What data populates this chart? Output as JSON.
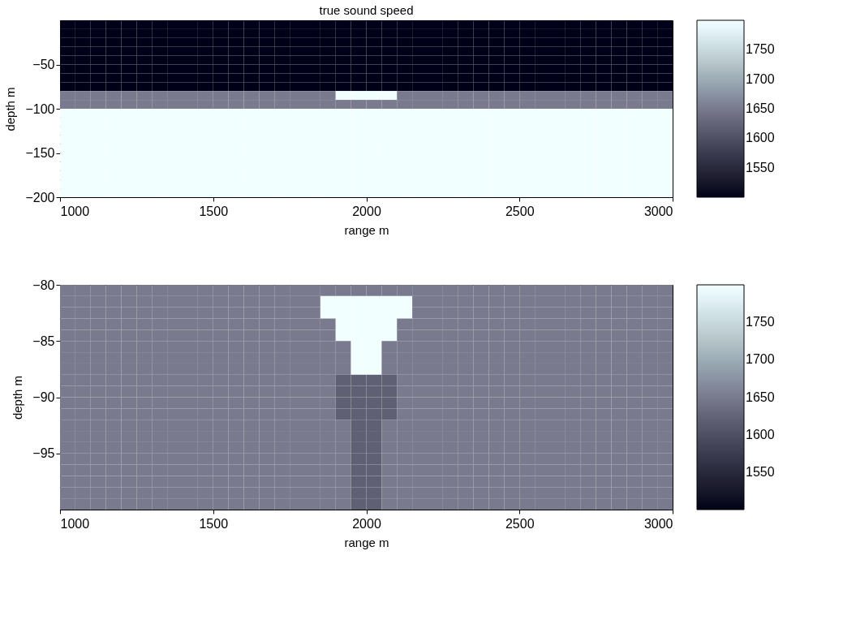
{
  "chart_data": [
    {
      "type": "heatmap",
      "title": "true sound speed",
      "xlabel": "range m",
      "ylabel": "depth m",
      "xlim": [
        1000,
        3000
      ],
      "xticks": [
        1000,
        1500,
        2000,
        2500,
        3000
      ],
      "ylim": [
        -200,
        0
      ],
      "yticks": [
        -200,
        -150,
        -100,
        -50
      ],
      "clim": [
        1500,
        1800
      ],
      "cticks": [
        1550,
        1600,
        1650,
        1700,
        1750
      ],
      "grid": false,
      "cells": [
        [
          1500,
          1500,
          1500,
          1500,
          1500,
          1500,
          1500,
          1500,
          1500,
          1500,
          1500,
          1500,
          1500,
          1500,
          1500,
          1500,
          1500,
          1500,
          1500,
          1500,
          1500,
          1500,
          1500,
          1500,
          1500,
          1500,
          1500,
          1500,
          1500,
          1500,
          1500,
          1500,
          1500,
          1500,
          1500,
          1500,
          1500,
          1500,
          1500,
          1500
        ],
        [
          1500,
          1500,
          1500,
          1500,
          1500,
          1500,
          1500,
          1500,
          1500,
          1500,
          1500,
          1500,
          1500,
          1500,
          1500,
          1500,
          1500,
          1500,
          1500,
          1500,
          1500,
          1500,
          1500,
          1500,
          1500,
          1500,
          1500,
          1500,
          1500,
          1500,
          1500,
          1500,
          1500,
          1500,
          1500,
          1500,
          1500,
          1500,
          1500,
          1500
        ],
        [
          1500,
          1500,
          1500,
          1500,
          1500,
          1500,
          1500,
          1500,
          1500,
          1500,
          1500,
          1500,
          1500,
          1500,
          1500,
          1500,
          1500,
          1500,
          1500,
          1500,
          1500,
          1500,
          1500,
          1500,
          1500,
          1500,
          1500,
          1500,
          1500,
          1500,
          1500,
          1500,
          1500,
          1500,
          1500,
          1500,
          1500,
          1500,
          1500,
          1500
        ],
        [
          1500,
          1500,
          1500,
          1500,
          1500,
          1500,
          1500,
          1500,
          1500,
          1500,
          1500,
          1500,
          1500,
          1500,
          1500,
          1500,
          1500,
          1500,
          1500,
          1500,
          1500,
          1500,
          1500,
          1500,
          1500,
          1500,
          1500,
          1500,
          1500,
          1500,
          1500,
          1500,
          1500,
          1500,
          1500,
          1500,
          1500,
          1500,
          1500,
          1500
        ],
        [
          1500,
          1500,
          1500,
          1500,
          1500,
          1500,
          1500,
          1500,
          1500,
          1500,
          1500,
          1500,
          1500,
          1500,
          1500,
          1500,
          1500,
          1500,
          1500,
          1500,
          1500,
          1500,
          1500,
          1500,
          1500,
          1500,
          1500,
          1500,
          1500,
          1500,
          1500,
          1500,
          1500,
          1500,
          1500,
          1500,
          1500,
          1500,
          1500,
          1500
        ],
        [
          1500,
          1500,
          1500,
          1500,
          1500,
          1500,
          1500,
          1500,
          1500,
          1500,
          1500,
          1500,
          1500,
          1500,
          1500,
          1500,
          1500,
          1500,
          1500,
          1500,
          1500,
          1500,
          1500,
          1500,
          1500,
          1500,
          1500,
          1500,
          1500,
          1500,
          1500,
          1500,
          1500,
          1500,
          1500,
          1500,
          1500,
          1500,
          1500,
          1500
        ],
        [
          1500,
          1500,
          1500,
          1500,
          1500,
          1500,
          1500,
          1500,
          1500,
          1500,
          1500,
          1500,
          1500,
          1500,
          1500,
          1500,
          1500,
          1500,
          1500,
          1500,
          1500,
          1500,
          1500,
          1500,
          1500,
          1500,
          1500,
          1500,
          1500,
          1500,
          1500,
          1500,
          1500,
          1500,
          1500,
          1500,
          1500,
          1500,
          1500,
          1500
        ],
        [
          1500,
          1500,
          1500,
          1500,
          1500,
          1500,
          1500,
          1500,
          1500,
          1500,
          1500,
          1500,
          1500,
          1500,
          1500,
          1500,
          1500,
          1500,
          1500,
          1500,
          1500,
          1500,
          1500,
          1500,
          1500,
          1500,
          1500,
          1500,
          1500,
          1500,
          1500,
          1500,
          1500,
          1500,
          1500,
          1500,
          1500,
          1500,
          1500,
          1500
        ],
        [
          1650,
          1650,
          1650,
          1650,
          1650,
          1650,
          1650,
          1650,
          1650,
          1650,
          1650,
          1650,
          1650,
          1650,
          1650,
          1650,
          1650,
          1650,
          1800,
          1800,
          1800,
          1800,
          1650,
          1650,
          1650,
          1650,
          1650,
          1650,
          1650,
          1650,
          1650,
          1650,
          1650,
          1650,
          1650,
          1650,
          1650,
          1650,
          1650,
          1650
        ],
        [
          1650,
          1650,
          1650,
          1650,
          1650,
          1650,
          1650,
          1650,
          1650,
          1650,
          1650,
          1650,
          1650,
          1650,
          1650,
          1650,
          1650,
          1650,
          1650,
          1650,
          1650,
          1650,
          1650,
          1650,
          1650,
          1650,
          1650,
          1650,
          1650,
          1650,
          1650,
          1650,
          1650,
          1650,
          1650,
          1650,
          1650,
          1650,
          1650,
          1650
        ],
        [
          1800,
          1800,
          1800,
          1800,
          1800,
          1800,
          1800,
          1800,
          1800,
          1800,
          1800,
          1800,
          1800,
          1800,
          1800,
          1800,
          1800,
          1800,
          1800,
          1800,
          1800,
          1800,
          1800,
          1800,
          1800,
          1800,
          1800,
          1800,
          1800,
          1800,
          1800,
          1800,
          1800,
          1800,
          1800,
          1800,
          1800,
          1800,
          1800,
          1800
        ],
        [
          1800,
          1800,
          1800,
          1800,
          1800,
          1800,
          1800,
          1800,
          1800,
          1800,
          1800,
          1800,
          1800,
          1800,
          1800,
          1800,
          1800,
          1800,
          1800,
          1800,
          1800,
          1800,
          1800,
          1800,
          1800,
          1800,
          1800,
          1800,
          1800,
          1800,
          1800,
          1800,
          1800,
          1800,
          1800,
          1800,
          1800,
          1800,
          1800,
          1800
        ],
        [
          1800,
          1800,
          1800,
          1800,
          1800,
          1800,
          1800,
          1800,
          1800,
          1800,
          1800,
          1800,
          1800,
          1800,
          1800,
          1800,
          1800,
          1800,
          1800,
          1800,
          1800,
          1800,
          1800,
          1800,
          1800,
          1800,
          1800,
          1800,
          1800,
          1800,
          1800,
          1800,
          1800,
          1800,
          1800,
          1800,
          1800,
          1800,
          1800,
          1800
        ],
        [
          1800,
          1800,
          1800,
          1800,
          1800,
          1800,
          1800,
          1800,
          1800,
          1800,
          1800,
          1800,
          1800,
          1800,
          1800,
          1800,
          1800,
          1800,
          1800,
          1800,
          1800,
          1800,
          1800,
          1800,
          1800,
          1800,
          1800,
          1800,
          1800,
          1800,
          1800,
          1800,
          1800,
          1800,
          1800,
          1800,
          1800,
          1800,
          1800,
          1800
        ],
        [
          1800,
          1800,
          1800,
          1800,
          1800,
          1800,
          1800,
          1800,
          1800,
          1800,
          1800,
          1800,
          1800,
          1800,
          1800,
          1800,
          1800,
          1800,
          1800,
          1800,
          1800,
          1800,
          1800,
          1800,
          1800,
          1800,
          1800,
          1800,
          1800,
          1800,
          1800,
          1800,
          1800,
          1800,
          1800,
          1800,
          1800,
          1800,
          1800,
          1800
        ],
        [
          1800,
          1800,
          1800,
          1800,
          1800,
          1800,
          1800,
          1800,
          1800,
          1800,
          1800,
          1800,
          1800,
          1800,
          1800,
          1800,
          1800,
          1800,
          1800,
          1800,
          1800,
          1800,
          1800,
          1800,
          1800,
          1800,
          1800,
          1800,
          1800,
          1800,
          1800,
          1800,
          1800,
          1800,
          1800,
          1800,
          1800,
          1800,
          1800,
          1800
        ],
        [
          1800,
          1800,
          1800,
          1800,
          1800,
          1800,
          1800,
          1800,
          1800,
          1800,
          1800,
          1800,
          1800,
          1800,
          1800,
          1800,
          1800,
          1800,
          1800,
          1800,
          1800,
          1800,
          1800,
          1800,
          1800,
          1800,
          1800,
          1800,
          1800,
          1800,
          1800,
          1800,
          1800,
          1800,
          1800,
          1800,
          1800,
          1800,
          1800,
          1800
        ],
        [
          1800,
          1800,
          1800,
          1800,
          1800,
          1800,
          1800,
          1800,
          1800,
          1800,
          1800,
          1800,
          1800,
          1800,
          1800,
          1800,
          1800,
          1800,
          1800,
          1800,
          1800,
          1800,
          1800,
          1800,
          1800,
          1800,
          1800,
          1800,
          1800,
          1800,
          1800,
          1800,
          1800,
          1800,
          1800,
          1800,
          1800,
          1800,
          1800,
          1800
        ],
        [
          1800,
          1800,
          1800,
          1800,
          1800,
          1800,
          1800,
          1800,
          1800,
          1800,
          1800,
          1800,
          1800,
          1800,
          1800,
          1800,
          1800,
          1800,
          1800,
          1800,
          1800,
          1800,
          1800,
          1800,
          1800,
          1800,
          1800,
          1800,
          1800,
          1800,
          1800,
          1800,
          1800,
          1800,
          1800,
          1800,
          1800,
          1800,
          1800,
          1800
        ],
        [
          1800,
          1800,
          1800,
          1800,
          1800,
          1800,
          1800,
          1800,
          1800,
          1800,
          1800,
          1800,
          1800,
          1800,
          1800,
          1800,
          1800,
          1800,
          1800,
          1800,
          1800,
          1800,
          1800,
          1800,
          1800,
          1800,
          1800,
          1800,
          1800,
          1800,
          1800,
          1800,
          1800,
          1800,
          1800,
          1800,
          1800,
          1800,
          1800,
          1800
        ]
      ]
    },
    {
      "type": "heatmap",
      "xlabel": "range m",
      "ylabel": "depth m",
      "xlim": [
        1000,
        3000
      ],
      "xticks": [
        1000,
        1500,
        2000,
        2500,
        3000
      ],
      "ylim": [
        -100,
        -80
      ],
      "yticks": [
        -95,
        -90,
        -85,
        -80
      ],
      "clim": [
        1500,
        1800
      ],
      "cticks": [
        1550,
        1600,
        1650,
        1700,
        1750
      ],
      "grid": false,
      "cells": [
        [
          1650,
          1650,
          1650,
          1650,
          1650,
          1650,
          1650,
          1650,
          1650,
          1650,
          1650,
          1650,
          1650,
          1650,
          1650,
          1650,
          1650,
          1650,
          1650,
          1650,
          1650,
          1650,
          1650,
          1650,
          1650,
          1650,
          1650,
          1650,
          1650,
          1650,
          1650,
          1650,
          1650,
          1650,
          1650,
          1650,
          1650,
          1650,
          1650,
          1650
        ],
        [
          1650,
          1650,
          1650,
          1650,
          1650,
          1650,
          1650,
          1650,
          1650,
          1650,
          1650,
          1650,
          1650,
          1650,
          1650,
          1650,
          1650,
          1800,
          1800,
          1800,
          1800,
          1800,
          1800,
          1650,
          1650,
          1650,
          1650,
          1650,
          1650,
          1650,
          1650,
          1650,
          1650,
          1650,
          1650,
          1650,
          1650,
          1650,
          1650,
          1650
        ],
        [
          1650,
          1650,
          1650,
          1650,
          1650,
          1650,
          1650,
          1650,
          1650,
          1650,
          1650,
          1650,
          1650,
          1650,
          1650,
          1650,
          1650,
          1800,
          1800,
          1800,
          1800,
          1800,
          1800,
          1650,
          1650,
          1650,
          1650,
          1650,
          1650,
          1650,
          1650,
          1650,
          1650,
          1650,
          1650,
          1650,
          1650,
          1650,
          1650,
          1650
        ],
        [
          1650,
          1650,
          1650,
          1650,
          1650,
          1650,
          1650,
          1650,
          1650,
          1650,
          1650,
          1650,
          1650,
          1650,
          1650,
          1650,
          1650,
          1650,
          1800,
          1800,
          1800,
          1800,
          1650,
          1650,
          1650,
          1650,
          1650,
          1650,
          1650,
          1650,
          1650,
          1650,
          1650,
          1650,
          1650,
          1650,
          1650,
          1650,
          1650,
          1650
        ],
        [
          1650,
          1650,
          1650,
          1650,
          1650,
          1650,
          1650,
          1650,
          1650,
          1650,
          1650,
          1650,
          1650,
          1650,
          1650,
          1650,
          1650,
          1650,
          1800,
          1800,
          1800,
          1800,
          1650,
          1650,
          1650,
          1650,
          1650,
          1650,
          1650,
          1650,
          1650,
          1650,
          1650,
          1650,
          1650,
          1650,
          1650,
          1650,
          1650,
          1650
        ],
        [
          1650,
          1650,
          1650,
          1650,
          1650,
          1650,
          1650,
          1650,
          1650,
          1650,
          1650,
          1650,
          1650,
          1650,
          1650,
          1650,
          1650,
          1650,
          1650,
          1800,
          1800,
          1650,
          1650,
          1650,
          1650,
          1650,
          1650,
          1650,
          1650,
          1650,
          1650,
          1650,
          1650,
          1650,
          1650,
          1650,
          1650,
          1650,
          1650,
          1650
        ],
        [
          1650,
          1650,
          1650,
          1650,
          1650,
          1650,
          1650,
          1650,
          1650,
          1650,
          1650,
          1650,
          1650,
          1650,
          1650,
          1650,
          1650,
          1650,
          1650,
          1800,
          1800,
          1650,
          1650,
          1650,
          1650,
          1650,
          1650,
          1650,
          1650,
          1650,
          1650,
          1650,
          1650,
          1650,
          1650,
          1650,
          1650,
          1650,
          1650,
          1650
        ],
        [
          1650,
          1650,
          1650,
          1650,
          1650,
          1650,
          1650,
          1650,
          1650,
          1650,
          1650,
          1650,
          1650,
          1650,
          1650,
          1650,
          1650,
          1650,
          1650,
          1800,
          1800,
          1650,
          1650,
          1650,
          1650,
          1650,
          1650,
          1650,
          1650,
          1650,
          1650,
          1650,
          1650,
          1650,
          1650,
          1650,
          1650,
          1650,
          1650,
          1650
        ],
        [
          1650,
          1650,
          1650,
          1650,
          1650,
          1650,
          1650,
          1650,
          1650,
          1650,
          1650,
          1650,
          1650,
          1650,
          1650,
          1650,
          1650,
          1650,
          1620,
          1620,
          1620,
          1620,
          1650,
          1650,
          1650,
          1650,
          1650,
          1650,
          1650,
          1650,
          1650,
          1650,
          1650,
          1650,
          1650,
          1650,
          1650,
          1650,
          1650,
          1650
        ],
        [
          1650,
          1650,
          1650,
          1650,
          1650,
          1650,
          1650,
          1650,
          1650,
          1650,
          1650,
          1650,
          1650,
          1650,
          1650,
          1650,
          1650,
          1650,
          1620,
          1620,
          1620,
          1620,
          1650,
          1650,
          1650,
          1650,
          1650,
          1650,
          1650,
          1650,
          1650,
          1650,
          1650,
          1650,
          1650,
          1650,
          1650,
          1650,
          1650,
          1650
        ],
        [
          1650,
          1650,
          1650,
          1650,
          1650,
          1650,
          1650,
          1650,
          1650,
          1650,
          1650,
          1650,
          1650,
          1650,
          1650,
          1650,
          1650,
          1650,
          1620,
          1620,
          1620,
          1620,
          1650,
          1650,
          1650,
          1650,
          1650,
          1650,
          1650,
          1650,
          1650,
          1650,
          1650,
          1650,
          1650,
          1650,
          1650,
          1650,
          1650,
          1650
        ],
        [
          1650,
          1650,
          1650,
          1650,
          1650,
          1650,
          1650,
          1650,
          1650,
          1650,
          1650,
          1650,
          1650,
          1650,
          1650,
          1650,
          1650,
          1650,
          1620,
          1620,
          1620,
          1620,
          1650,
          1650,
          1650,
          1650,
          1650,
          1650,
          1650,
          1650,
          1650,
          1650,
          1650,
          1650,
          1650,
          1650,
          1650,
          1650,
          1650,
          1650
        ],
        [
          1650,
          1650,
          1650,
          1650,
          1650,
          1650,
          1650,
          1650,
          1650,
          1650,
          1650,
          1650,
          1650,
          1650,
          1650,
          1650,
          1650,
          1650,
          1650,
          1620,
          1620,
          1650,
          1650,
          1650,
          1650,
          1650,
          1650,
          1650,
          1650,
          1650,
          1650,
          1650,
          1650,
          1650,
          1650,
          1650,
          1650,
          1650,
          1650,
          1650
        ],
        [
          1650,
          1650,
          1650,
          1650,
          1650,
          1650,
          1650,
          1650,
          1650,
          1650,
          1650,
          1650,
          1650,
          1650,
          1650,
          1650,
          1650,
          1650,
          1650,
          1620,
          1620,
          1650,
          1650,
          1650,
          1650,
          1650,
          1650,
          1650,
          1650,
          1650,
          1650,
          1650,
          1650,
          1650,
          1650,
          1650,
          1650,
          1650,
          1650,
          1650
        ],
        [
          1650,
          1650,
          1650,
          1650,
          1650,
          1650,
          1650,
          1650,
          1650,
          1650,
          1650,
          1650,
          1650,
          1650,
          1650,
          1650,
          1650,
          1650,
          1650,
          1620,
          1620,
          1650,
          1650,
          1650,
          1650,
          1650,
          1650,
          1650,
          1650,
          1650,
          1650,
          1650,
          1650,
          1650,
          1650,
          1650,
          1650,
          1650,
          1650,
          1650
        ],
        [
          1650,
          1650,
          1650,
          1650,
          1650,
          1650,
          1650,
          1650,
          1650,
          1650,
          1650,
          1650,
          1650,
          1650,
          1650,
          1650,
          1650,
          1650,
          1650,
          1620,
          1620,
          1650,
          1650,
          1650,
          1650,
          1650,
          1650,
          1650,
          1650,
          1650,
          1650,
          1650,
          1650,
          1650,
          1650,
          1650,
          1650,
          1650,
          1650,
          1650
        ],
        [
          1650,
          1650,
          1650,
          1650,
          1650,
          1650,
          1650,
          1650,
          1650,
          1650,
          1650,
          1650,
          1650,
          1650,
          1650,
          1650,
          1650,
          1650,
          1650,
          1620,
          1620,
          1650,
          1650,
          1650,
          1650,
          1650,
          1650,
          1650,
          1650,
          1650,
          1650,
          1650,
          1650,
          1650,
          1650,
          1650,
          1650,
          1650,
          1650,
          1650
        ],
        [
          1650,
          1650,
          1650,
          1650,
          1650,
          1650,
          1650,
          1650,
          1650,
          1650,
          1650,
          1650,
          1650,
          1650,
          1650,
          1650,
          1650,
          1650,
          1650,
          1620,
          1620,
          1650,
          1650,
          1650,
          1650,
          1650,
          1650,
          1650,
          1650,
          1650,
          1650,
          1650,
          1650,
          1650,
          1650,
          1650,
          1650,
          1650,
          1650,
          1650
        ],
        [
          1650,
          1650,
          1650,
          1650,
          1650,
          1650,
          1650,
          1650,
          1650,
          1650,
          1650,
          1650,
          1650,
          1650,
          1650,
          1650,
          1650,
          1650,
          1650,
          1620,
          1620,
          1650,
          1650,
          1650,
          1650,
          1650,
          1650,
          1650,
          1650,
          1650,
          1650,
          1650,
          1650,
          1650,
          1650,
          1650,
          1650,
          1650,
          1650,
          1650
        ],
        [
          1650,
          1650,
          1650,
          1650,
          1650,
          1650,
          1650,
          1650,
          1650,
          1650,
          1650,
          1650,
          1650,
          1650,
          1650,
          1650,
          1650,
          1650,
          1650,
          1620,
          1620,
          1650,
          1650,
          1650,
          1650,
          1650,
          1650,
          1650,
          1650,
          1650,
          1650,
          1650,
          1650,
          1650,
          1650,
          1650,
          1650,
          1650,
          1650,
          1650
        ]
      ]
    }
  ]
}
